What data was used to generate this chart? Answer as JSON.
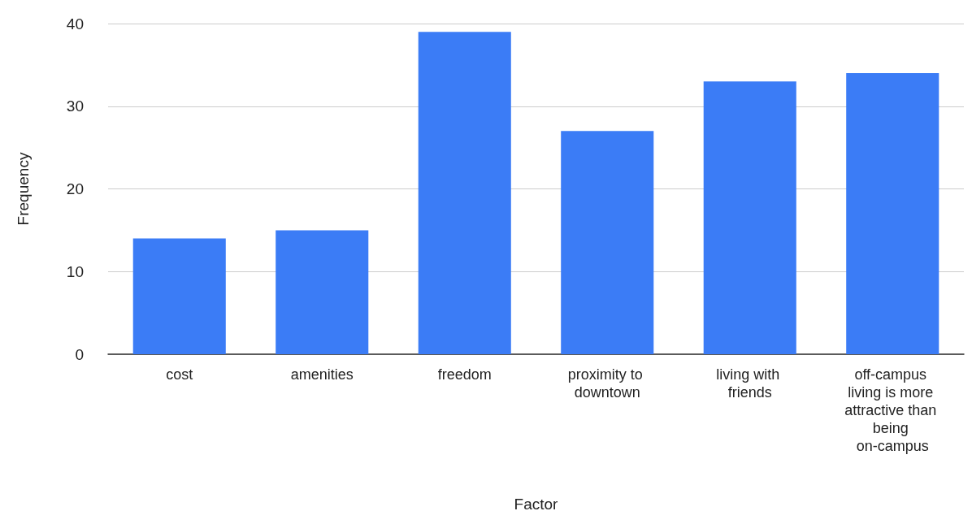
{
  "chart_data": {
    "type": "bar",
    "xlabel": "Factor",
    "ylabel": "Frequency",
    "categories": [
      "cost",
      "amenities",
      "freedom",
      "proximity to downtown",
      "living with friends",
      "off-campus living is more attractive than being on-campus"
    ],
    "values": [
      14,
      15,
      39,
      27,
      33,
      34
    ],
    "color": "#3b7cf6",
    "ylim": [
      0,
      40
    ],
    "yticks": [
      0,
      10,
      20,
      30,
      40
    ],
    "grid": "y"
  }
}
